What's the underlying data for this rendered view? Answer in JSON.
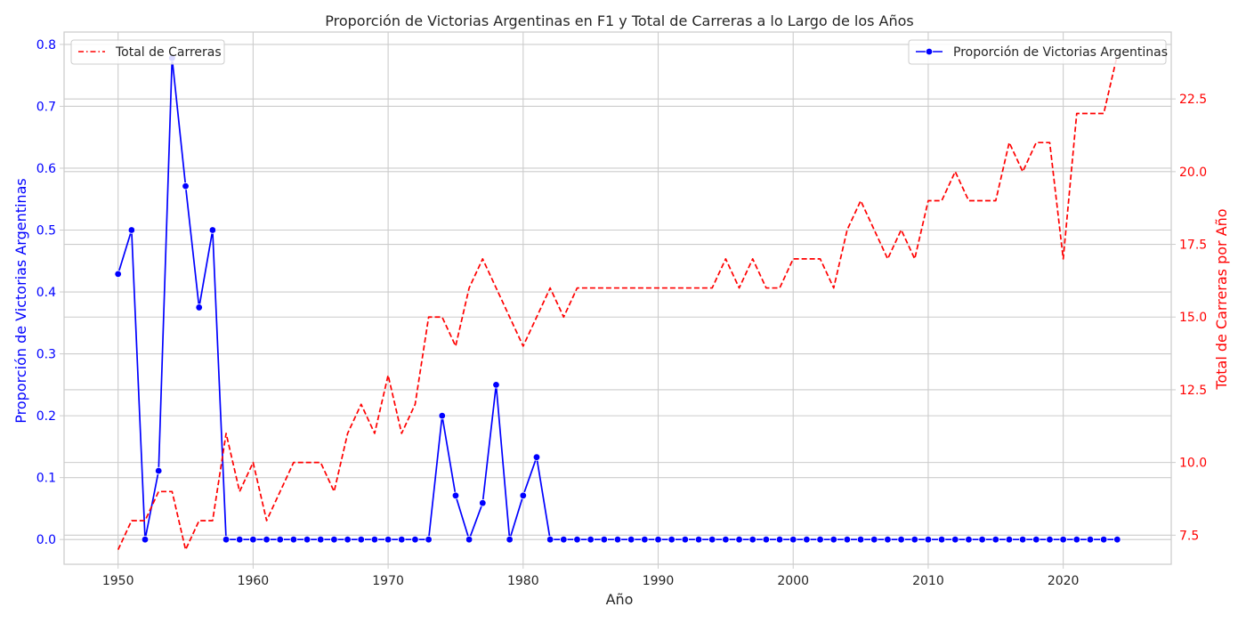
{
  "chart_data": {
    "type": "line",
    "title": "Proporción de Victorias Argentinas en F1 y Total de Carreras a lo Largo de los Años",
    "xlabel": "Año",
    "ylabel_left": "Proporción de Victorias Argentinas",
    "ylabel_right": "Total de Carreras por Año",
    "xlim": [
      1946,
      2028
    ],
    "ylim_left": [
      -0.04,
      0.82
    ],
    "ylim_right": [
      6.5,
      24.8
    ],
    "x_ticks": [
      1950,
      1960,
      1970,
      1980,
      1990,
      2000,
      2010,
      2020
    ],
    "x_tick_labels": [
      "1950",
      "1960",
      "1970",
      "1980",
      "1990",
      "2000",
      "2010",
      "2020"
    ],
    "y_left_ticks": [
      0.0,
      0.1,
      0.2,
      0.3,
      0.4,
      0.5,
      0.6,
      0.7,
      0.8
    ],
    "y_left_tick_labels": [
      "0.0",
      "0.1",
      "0.2",
      "0.3",
      "0.4",
      "0.5",
      "0.6",
      "0.7",
      "0.8"
    ],
    "y_right_ticks": [
      7.5,
      10.0,
      12.5,
      15.0,
      17.5,
      20.0,
      22.5
    ],
    "y_right_tick_labels": [
      "7.5",
      "10.0",
      "12.5",
      "15.0",
      "17.5",
      "20.0",
      "22.5"
    ],
    "grid": true,
    "legends": [
      {
        "placement": "top-left",
        "label": "Total de Carreras"
      },
      {
        "placement": "top-right",
        "label": "Proporción de Victorias Argentinas"
      }
    ],
    "x": [
      1950,
      1951,
      1952,
      1953,
      1954,
      1955,
      1956,
      1957,
      1958,
      1959,
      1960,
      1961,
      1962,
      1963,
      1964,
      1965,
      1966,
      1967,
      1968,
      1969,
      1970,
      1971,
      1972,
      1973,
      1974,
      1975,
      1976,
      1977,
      1978,
      1979,
      1980,
      1981,
      1982,
      1983,
      1984,
      1985,
      1986,
      1987,
      1988,
      1989,
      1990,
      1991,
      1992,
      1993,
      1994,
      1995,
      1996,
      1997,
      1998,
      1999,
      2000,
      2001,
      2002,
      2003,
      2004,
      2005,
      2006,
      2007,
      2008,
      2009,
      2010,
      2011,
      2012,
      2013,
      2014,
      2015,
      2016,
      2017,
      2018,
      2019,
      2020,
      2021,
      2022,
      2023,
      2024
    ],
    "series": [
      {
        "name": "Proporción de Victorias Argentinas",
        "axis": "left",
        "color": "#0000ff",
        "style": "solid",
        "marker": "circle",
        "values": [
          0.429,
          0.5,
          0.0,
          0.111,
          0.778,
          0.571,
          0.375,
          0.5,
          0.0,
          0.0,
          0.0,
          0.0,
          0.0,
          0.0,
          0.0,
          0.0,
          0.0,
          0.0,
          0.0,
          0.0,
          0.0,
          0.0,
          0.0,
          0.0,
          0.2,
          0.071,
          0.0,
          0.059,
          0.25,
          0.0,
          0.071,
          0.133,
          0.0,
          0.0,
          0.0,
          0.0,
          0.0,
          0.0,
          0.0,
          0.0,
          0.0,
          0.0,
          0.0,
          0.0,
          0.0,
          0.0,
          0.0,
          0.0,
          0.0,
          0.0,
          0.0,
          0.0,
          0.0,
          0.0,
          0.0,
          0.0,
          0.0,
          0.0,
          0.0,
          0.0,
          0.0,
          0.0,
          0.0,
          0.0,
          0.0,
          0.0,
          0.0,
          0.0,
          0.0,
          0.0,
          0.0,
          0.0,
          0.0,
          0.0,
          0.0
        ]
      },
      {
        "name": "Total de Carreras",
        "axis": "right",
        "color": "#ff0000",
        "style": "dashed",
        "marker": "none",
        "values": [
          7,
          8,
          8,
          9,
          9,
          7,
          8,
          8,
          11,
          9,
          10,
          8,
          9,
          10,
          10,
          10,
          9,
          11,
          12,
          11,
          13,
          11,
          12,
          15,
          15,
          14,
          16,
          17,
          16,
          15,
          14,
          15,
          16,
          15,
          16,
          16,
          16,
          16,
          16,
          16,
          16,
          16,
          16,
          16,
          16,
          17,
          16,
          17,
          16,
          16,
          17,
          17,
          17,
          16,
          18,
          19,
          18,
          17,
          18,
          17,
          19,
          19,
          20,
          19,
          19,
          19,
          21,
          20,
          21,
          21,
          17,
          22,
          22,
          22,
          24
        ]
      }
    ]
  }
}
